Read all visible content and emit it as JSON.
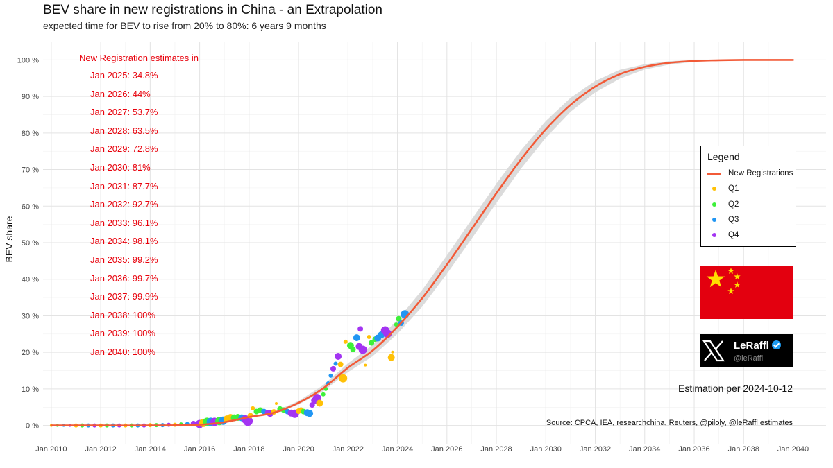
{
  "chart_data": {
    "type": "line",
    "title": "BEV share in new registrations in China - an Extrapolation",
    "subtitle": "expected time for BEV to rise from 20% to 80%: 6 years 9 months",
    "xlabel": "",
    "ylabel": "BEV share",
    "xlim": [
      "2009-09",
      "2041-05"
    ],
    "ylim": [
      -5,
      105
    ],
    "grid": true,
    "x_ticks": [
      "Jan 2010",
      "Jan 2012",
      "Jan 2014",
      "Jan 2016",
      "Jan 2018",
      "Jan 2020",
      "Jan 2022",
      "Jan 2024",
      "Jan 2026",
      "Jan 2028",
      "Jan 2030",
      "Jan 2032",
      "Jan 2034",
      "Jan 2036",
      "Jan 2038",
      "Jan 2040"
    ],
    "y_ticks": [
      "0 %",
      "10 %",
      "20 %",
      "30 %",
      "40 %",
      "50 %",
      "60 %",
      "70 %",
      "80 %",
      "90 %",
      "100 %"
    ],
    "y_tick_values": [
      0,
      10,
      20,
      30,
      40,
      50,
      60,
      70,
      80,
      90,
      100
    ],
    "curve": {
      "name": "New Registrations",
      "color": "#f25a37",
      "band_color": "#d9d9d9",
      "x": [
        2010,
        2012,
        2014,
        2016,
        2017,
        2018,
        2019,
        2020,
        2021,
        2022,
        2023,
        2024,
        2025,
        2026,
        2027,
        2028,
        2029,
        2030,
        2031,
        2032,
        2033,
        2034,
        2035,
        2036,
        2037,
        2038,
        2039,
        2040
      ],
      "y": [
        0,
        0,
        0,
        0.2,
        0.9,
        2.3,
        3.5,
        6.2,
        10.2,
        15.8,
        20.5,
        27,
        34.8,
        44,
        53.7,
        63.5,
        72.8,
        81,
        87.7,
        92.7,
        96.1,
        98.1,
        99.2,
        99.7,
        99.9,
        100,
        100,
        100
      ],
      "band_width": [
        0,
        0,
        0,
        0,
        0,
        0.1,
        0.2,
        0.4,
        0.7,
        1,
        1.3,
        1.6,
        1.9,
        2.1,
        2.2,
        2.2,
        2.1,
        1.9,
        1.6,
        1.3,
        1,
        0.6,
        0.4,
        0.2,
        0.1,
        0,
        0,
        0
      ]
    },
    "points": [
      {
        "x": 2010.0,
        "y": 0.0,
        "q": 1,
        "s": 2
      },
      {
        "x": 2010.25,
        "y": 0.0,
        "q": 2,
        "s": 2
      },
      {
        "x": 2010.5,
        "y": 0.0,
        "q": 3,
        "s": 2
      },
      {
        "x": 2010.75,
        "y": 0.0,
        "q": 4,
        "s": 2
      },
      {
        "x": 2011.0,
        "y": 0.0,
        "q": 1,
        "s": 3
      },
      {
        "x": 2011.25,
        "y": 0.0,
        "q": 2,
        "s": 3
      },
      {
        "x": 2011.5,
        "y": 0.0,
        "q": 3,
        "s": 3
      },
      {
        "x": 2011.75,
        "y": 0.0,
        "q": 4,
        "s": 3
      },
      {
        "x": 2012.0,
        "y": 0.0,
        "q": 1,
        "s": 3
      },
      {
        "x": 2012.25,
        "y": 0.0,
        "q": 2,
        "s": 3
      },
      {
        "x": 2012.5,
        "y": 0.0,
        "q": 3,
        "s": 3
      },
      {
        "x": 2012.75,
        "y": 0.0,
        "q": 4,
        "s": 3
      },
      {
        "x": 2013.0,
        "y": 0.0,
        "q": 1,
        "s": 3
      },
      {
        "x": 2013.25,
        "y": 0.0,
        "q": 2,
        "s": 3
      },
      {
        "x": 2013.5,
        "y": 0.0,
        "q": 3,
        "s": 3
      },
      {
        "x": 2013.75,
        "y": 0.0,
        "q": 4,
        "s": 3
      },
      {
        "x": 2014.0,
        "y": 0.1,
        "q": 1,
        "s": 3
      },
      {
        "x": 2014.25,
        "y": 0.1,
        "q": 2,
        "s": 3
      },
      {
        "x": 2014.5,
        "y": 0.1,
        "q": 3,
        "s": 3
      },
      {
        "x": 2014.75,
        "y": 0.2,
        "q": 4,
        "s": 3
      },
      {
        "x": 2015.0,
        "y": 0.2,
        "q": 1,
        "s": 3
      },
      {
        "x": 2015.25,
        "y": 0.3,
        "q": 2,
        "s": 3
      },
      {
        "x": 2015.5,
        "y": 0.4,
        "q": 3,
        "s": 3
      },
      {
        "x": 2015.75,
        "y": 0.5,
        "q": 4,
        "s": 4
      },
      {
        "x": 2016.0,
        "y": 0.4,
        "q": 4,
        "s": 6
      },
      {
        "x": 2016.15,
        "y": 0.7,
        "q": 1,
        "s": 6
      },
      {
        "x": 2016.3,
        "y": 1.0,
        "q": 2,
        "s": 6
      },
      {
        "x": 2016.45,
        "y": 1.0,
        "q": 3,
        "s": 6
      },
      {
        "x": 2016.6,
        "y": 1.0,
        "q": 4,
        "s": 6
      },
      {
        "x": 2016.8,
        "y": 1.2,
        "q": 2,
        "s": 6
      },
      {
        "x": 2016.95,
        "y": 1.3,
        "q": 3,
        "s": 6
      },
      {
        "x": 2017.1,
        "y": 1.8,
        "q": 1,
        "s": 5
      },
      {
        "x": 2017.25,
        "y": 2.0,
        "q": 1,
        "s": 6
      },
      {
        "x": 2017.4,
        "y": 2.1,
        "q": 2,
        "s": 5
      },
      {
        "x": 2017.55,
        "y": 2.2,
        "q": 2,
        "s": 5
      },
      {
        "x": 2017.7,
        "y": 2.1,
        "q": 3,
        "s": 5
      },
      {
        "x": 2017.85,
        "y": 1.7,
        "q": 4,
        "s": 6
      },
      {
        "x": 2017.95,
        "y": 1.2,
        "q": 4,
        "s": 7
      },
      {
        "x": 2018.05,
        "y": 2.7,
        "q": 1,
        "s": 4
      },
      {
        "x": 2018.15,
        "y": 4.7,
        "q": 1,
        "s": 3
      },
      {
        "x": 2018.3,
        "y": 3.8,
        "q": 2,
        "s": 4
      },
      {
        "x": 2018.45,
        "y": 4.2,
        "q": 2,
        "s": 4
      },
      {
        "x": 2018.6,
        "y": 3.8,
        "q": 3,
        "s": 4
      },
      {
        "x": 2018.75,
        "y": 3.5,
        "q": 4,
        "s": 4
      },
      {
        "x": 2018.85,
        "y": 3.3,
        "q": 4,
        "s": 5
      },
      {
        "x": 2019.0,
        "y": 3.7,
        "q": 1,
        "s": 4
      },
      {
        "x": 2019.1,
        "y": 6.0,
        "q": 1,
        "s": 2
      },
      {
        "x": 2019.25,
        "y": 4.5,
        "q": 2,
        "s": 4
      },
      {
        "x": 2019.4,
        "y": 4.2,
        "q": 2,
        "s": 4
      },
      {
        "x": 2019.55,
        "y": 3.8,
        "q": 3,
        "s": 4
      },
      {
        "x": 2019.7,
        "y": 3.4,
        "q": 4,
        "s": 5
      },
      {
        "x": 2019.85,
        "y": 3.2,
        "q": 4,
        "s": 6
      },
      {
        "x": 2020.0,
        "y": 3.9,
        "q": 1,
        "s": 4
      },
      {
        "x": 2020.1,
        "y": 4.2,
        "q": 1,
        "s": 4
      },
      {
        "x": 2020.2,
        "y": 3.8,
        "q": 2,
        "s": 4
      },
      {
        "x": 2020.35,
        "y": 3.5,
        "q": 3,
        "s": 5
      },
      {
        "x": 2020.45,
        "y": 3.3,
        "q": 3,
        "s": 5
      },
      {
        "x": 2020.55,
        "y": 5.6,
        "q": 4,
        "s": 4
      },
      {
        "x": 2020.65,
        "y": 6.8,
        "q": 4,
        "s": 5
      },
      {
        "x": 2020.75,
        "y": 7.5,
        "q": 4,
        "s": 6
      },
      {
        "x": 2020.85,
        "y": 6.1,
        "q": 1,
        "s": 5
      },
      {
        "x": 2021.0,
        "y": 8.5,
        "q": 2,
        "s": 3
      },
      {
        "x": 2021.1,
        "y": 10.0,
        "q": 2,
        "s": 3
      },
      {
        "x": 2021.2,
        "y": 11.5,
        "q": 3,
        "s": 3
      },
      {
        "x": 2021.3,
        "y": 13.6,
        "q": 3,
        "s": 3
      },
      {
        "x": 2021.4,
        "y": 15.5,
        "q": 4,
        "s": 4
      },
      {
        "x": 2021.5,
        "y": 16.9,
        "q": 3,
        "s": 3
      },
      {
        "x": 2021.6,
        "y": 18.9,
        "q": 4,
        "s": 5
      },
      {
        "x": 2021.7,
        "y": 16.7,
        "q": 1,
        "s": 4
      },
      {
        "x": 2021.8,
        "y": 12.9,
        "q": 1,
        "s": 6
      },
      {
        "x": 2021.9,
        "y": 22.9,
        "q": 1,
        "s": 3
      },
      {
        "x": 2022.1,
        "y": 21.9,
        "q": 2,
        "s": 5
      },
      {
        "x": 2022.2,
        "y": 20.8,
        "q": 2,
        "s": 4
      },
      {
        "x": 2022.35,
        "y": 24.0,
        "q": 3,
        "s": 5
      },
      {
        "x": 2022.45,
        "y": 21.6,
        "q": 4,
        "s": 5
      },
      {
        "x": 2022.5,
        "y": 26.4,
        "q": 4,
        "s": 4
      },
      {
        "x": 2022.6,
        "y": 20.7,
        "q": 4,
        "s": 6
      },
      {
        "x": 2022.7,
        "y": 16.5,
        "q": 1,
        "s": 2
      },
      {
        "x": 2022.85,
        "y": 24.2,
        "q": 1,
        "s": 3
      },
      {
        "x": 2022.95,
        "y": 22.6,
        "q": 2,
        "s": 4
      },
      {
        "x": 2023.1,
        "y": 23.6,
        "q": 2,
        "s": 4
      },
      {
        "x": 2023.2,
        "y": 23.9,
        "q": 3,
        "s": 5
      },
      {
        "x": 2023.35,
        "y": 24.8,
        "q": 3,
        "s": 5
      },
      {
        "x": 2023.5,
        "y": 26.0,
        "q": 4,
        "s": 6
      },
      {
        "x": 2023.6,
        "y": 25.1,
        "q": 4,
        "s": 6
      },
      {
        "x": 2023.75,
        "y": 18.6,
        "q": 1,
        "s": 5
      },
      {
        "x": 2023.8,
        "y": 20.1,
        "q": 1,
        "s": 2
      },
      {
        "x": 2023.95,
        "y": 27.6,
        "q": 2,
        "s": 3
      },
      {
        "x": 2024.05,
        "y": 29.2,
        "q": 2,
        "s": 4
      },
      {
        "x": 2024.15,
        "y": 28.0,
        "q": 3,
        "s": 4
      },
      {
        "x": 2024.3,
        "y": 30.4,
        "q": 3,
        "s": 6
      }
    ],
    "quarter_colors": {
      "1": "#ffc107",
      "2": "#3ef03a",
      "3": "#2196f3",
      "4": "#a334f2"
    },
    "legend": {
      "title": "Legend",
      "placement": "right",
      "items": [
        {
          "label": "New Registrations",
          "kind": "line",
          "color": "#f25a37"
        },
        {
          "label": "Q1",
          "kind": "dot",
          "color": "#ffc107"
        },
        {
          "label": "Q2",
          "kind": "dot",
          "color": "#3ef03a"
        },
        {
          "label": "Q3",
          "kind": "dot",
          "color": "#2196f3"
        },
        {
          "label": "Q4",
          "kind": "dot",
          "color": "#a334f2"
        }
      ]
    },
    "annotations": {
      "header": "New Registration estimates in",
      "lines": [
        "Jan 2025: 34.8%",
        "Jan 2026: 44%",
        "Jan 2027: 53.7%",
        "Jan 2028: 63.5%",
        "Jan 2029: 72.8%",
        "Jan 2030: 81%",
        "Jan 2031: 87.7%",
        "Jan 2032: 92.7%",
        "Jan 2033: 96.1%",
        "Jan 2034: 98.1%",
        "Jan 2035: 99.2%",
        "Jan 2036: 99.7%",
        "Jan 2037: 99.9%",
        "Jan 2038: 100%",
        "Jan 2039: 100%",
        "Jan 2040: 100%"
      ],
      "color": "#e8000b"
    },
    "estimation_note": "Estimation per 2024-10-12",
    "source": "Source: CPCA, IEA, researchchina, Reuters, @piloly, @leRaffl estimates"
  },
  "badge": {
    "name": "LeRaffl",
    "handle": "@leRaffl",
    "logo_icon": "x-logo-icon",
    "verified_icon": "verified-badge-icon"
  },
  "flag": {
    "icon": "china-flag-icon",
    "background": "#e3000f",
    "star_color": "#ffde00"
  }
}
